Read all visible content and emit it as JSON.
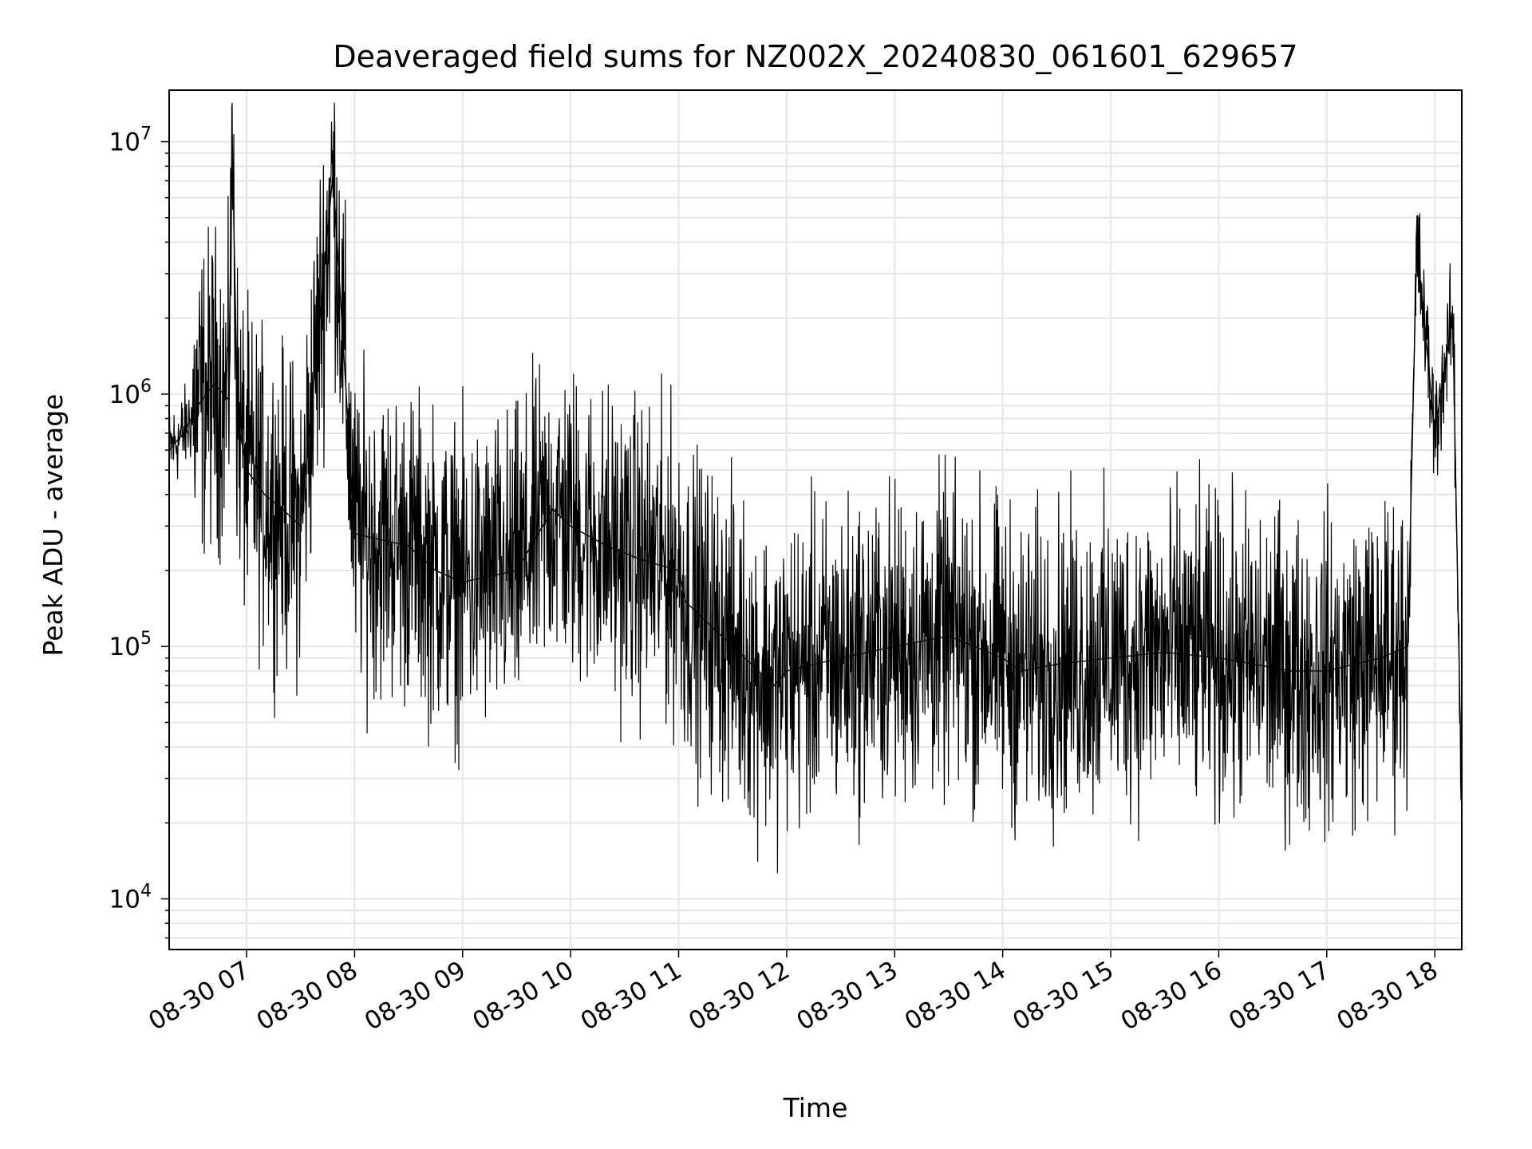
{
  "chart_data": {
    "type": "line",
    "title": "Deaveraged field sums for NZ002X_20240830_061601_629657",
    "xlabel": "Time",
    "ylabel": "Peak ADU - average",
    "y_scale": "log",
    "ylim": [
      6300,
      16000000
    ],
    "xlim": [
      "2024-08-30 06:17",
      "2024-08-30 18:15"
    ],
    "grid": true,
    "line_color": "#000000",
    "grid_color": "#e6e6e6",
    "x_ticks": [
      {
        "label": "08-30 07",
        "time": "2024-08-30 07:00"
      },
      {
        "label": "08-30 08",
        "time": "2024-08-30 08:00"
      },
      {
        "label": "08-30 09",
        "time": "2024-08-30 09:00"
      },
      {
        "label": "08-30 10",
        "time": "2024-08-30 10:00"
      },
      {
        "label": "08-30 11",
        "time": "2024-08-30 11:00"
      },
      {
        "label": "08-30 12",
        "time": "2024-08-30 12:00"
      },
      {
        "label": "08-30 13",
        "time": "2024-08-30 13:00"
      },
      {
        "label": "08-30 14",
        "time": "2024-08-30 14:00"
      },
      {
        "label": "08-30 15",
        "time": "2024-08-30 15:00"
      },
      {
        "label": "08-30 16",
        "time": "2024-08-30 16:00"
      },
      {
        "label": "08-30 17",
        "time": "2024-08-30 17:00"
      },
      {
        "label": "08-30 18",
        "time": "2024-08-30 18:00"
      }
    ],
    "y_ticks": [
      {
        "base": "10",
        "exp": "4",
        "value": 10000
      },
      {
        "base": "10",
        "exp": "5",
        "value": 100000
      },
      {
        "base": "10",
        "exp": "6",
        "value": 1000000
      },
      {
        "base": "10",
        "exp": "7",
        "value": 10000000
      }
    ],
    "series": [
      {
        "x": [
          "2024-08-30 06:17",
          "2024-08-30 06:25",
          "2024-08-30 06:33",
          "2024-08-30 06:42",
          "2024-08-30 06:50",
          "2024-08-30 06:52",
          "2024-08-30 06:55",
          "2024-08-30 07:00",
          "2024-08-30 07:10",
          "2024-08-30 07:20",
          "2024-08-30 07:30",
          "2024-08-30 07:48",
          "2024-08-30 08:00",
          "2024-08-30 08:30",
          "2024-08-30 08:45",
          "2024-08-30 09:00",
          "2024-08-30 09:30",
          "2024-08-30 09:50",
          "2024-08-30 10:00",
          "2024-08-30 10:20",
          "2024-08-30 10:40",
          "2024-08-30 11:00",
          "2024-08-30 11:04",
          "2024-08-30 11:30",
          "2024-08-30 11:53",
          "2024-08-30 12:00",
          "2024-08-30 12:30",
          "2024-08-30 13:00",
          "2024-08-30 13:30",
          "2024-08-30 14:00",
          "2024-08-30 14:10",
          "2024-08-30 14:30",
          "2024-08-30 15:00",
          "2024-08-30 15:30",
          "2024-08-30 16:00",
          "2024-08-30 16:20",
          "2024-08-30 16:40",
          "2024-08-30 17:00",
          "2024-08-30 17:30",
          "2024-08-30 17:45",
          "2024-08-30 17:50",
          "2024-08-30 18:00",
          "2024-08-30 18:05",
          "2024-08-30 18:10",
          "2024-08-30 18:15"
        ],
        "y": [
          600000,
          700000,
          900000,
          1100000,
          950000,
          10500000,
          800000,
          500000,
          400000,
          350000,
          300000,
          7500000,
          280000,
          250000,
          200000,
          180000,
          200000,
          350000,
          300000,
          250000,
          220000,
          200000,
          150000,
          100000,
          70000,
          80000,
          90000,
          100000,
          110000,
          90000,
          80000,
          85000,
          90000,
          95000,
          90000,
          85000,
          80000,
          80000,
          90000,
          100000,
          4000000,
          700000,
          1200000,
          2000000,
          23000
        ]
      }
    ]
  }
}
